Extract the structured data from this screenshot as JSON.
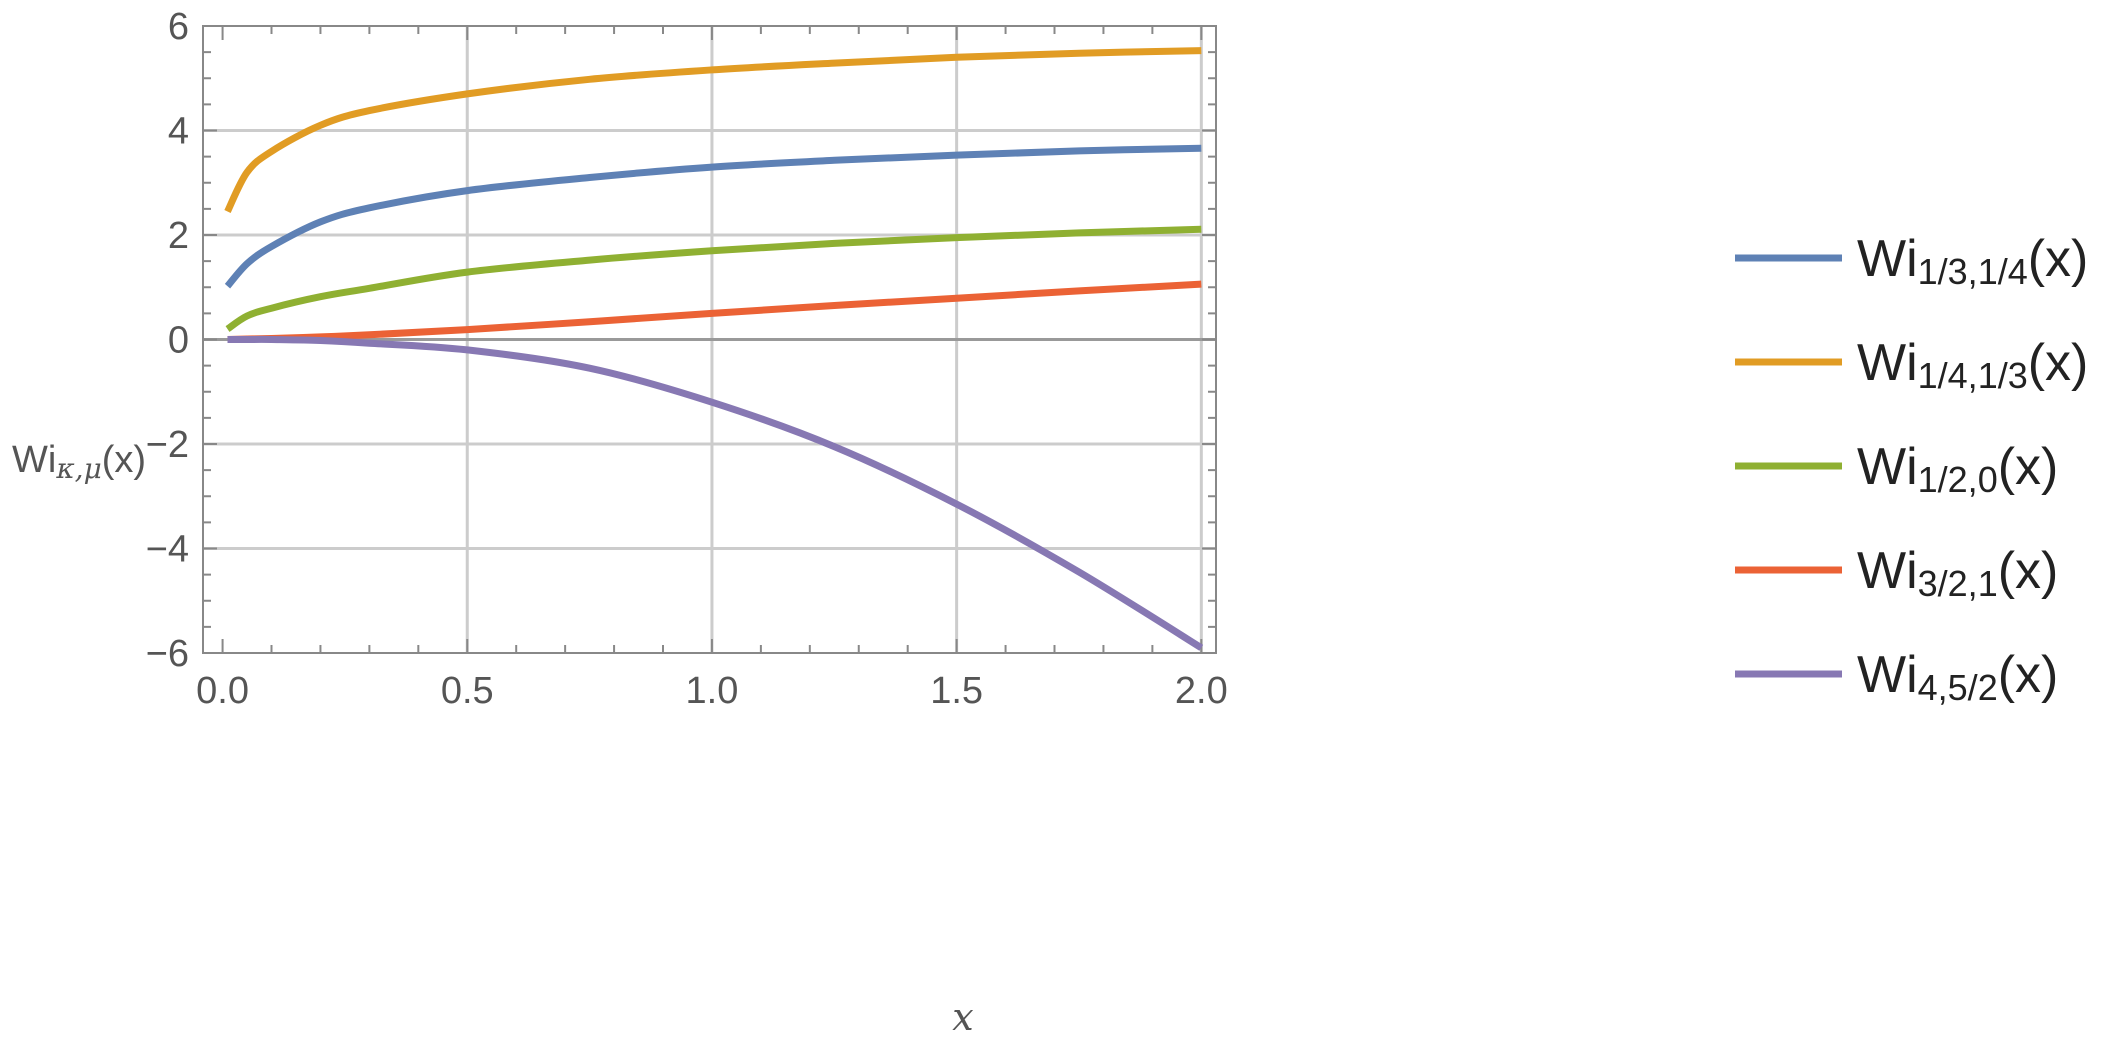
{
  "chart_data": {
    "type": "line",
    "xlabel": "x",
    "ylabel": {
      "main": "Wi",
      "sub": "κ,μ",
      "suffix": "(x)"
    },
    "xlim": [
      -0.04,
      2.03
    ],
    "ylim": [
      -6,
      6
    ],
    "x_ticks": [
      0.0,
      0.5,
      1.0,
      1.5,
      2.0
    ],
    "x_tick_labels": [
      "0.0",
      "0.5",
      "1.0",
      "1.5",
      "2.0"
    ],
    "y_ticks": [
      -6,
      -4,
      -2,
      0,
      2,
      4,
      6
    ],
    "y_tick_labels": [
      "−6",
      "−4",
      "−2",
      "0",
      "2",
      "4",
      "6"
    ],
    "grid": true,
    "legend_position": "right",
    "x": [
      0.01,
      0.05,
      0.1,
      0.2,
      0.3,
      0.5,
      0.75,
      1.0,
      1.25,
      1.5,
      1.75,
      2.0
    ],
    "series": [
      {
        "name_main": "Wi",
        "name_sub": "1/3,1/4",
        "name_suffix": "(x)",
        "color": "#5e81b5",
        "values": [
          1.02,
          1.45,
          1.78,
          2.25,
          2.52,
          2.85,
          3.1,
          3.3,
          3.43,
          3.53,
          3.61,
          3.66
        ]
      },
      {
        "name_main": "Wi",
        "name_sub": "1/4,1/3",
        "name_suffix": "(x)",
        "color": "#e19c24",
        "values": [
          2.45,
          3.2,
          3.6,
          4.1,
          4.38,
          4.7,
          4.98,
          5.16,
          5.29,
          5.4,
          5.48,
          5.53
        ]
      },
      {
        "name_main": "Wi",
        "name_sub": "1/2,0",
        "name_suffix": "(x)",
        "color": "#8fb032",
        "values": [
          0.2,
          0.45,
          0.6,
          0.82,
          0.98,
          1.29,
          1.52,
          1.7,
          1.84,
          1.95,
          2.04,
          2.11
        ]
      },
      {
        "name_main": "Wi",
        "name_sub": "3/2,1",
        "name_suffix": "(x)",
        "color": "#eb6235",
        "values": [
          0.0,
          0.01,
          0.02,
          0.05,
          0.09,
          0.19,
          0.34,
          0.5,
          0.65,
          0.79,
          0.93,
          1.06
        ]
      },
      {
        "name_main": "Wi",
        "name_sub": "4,5/2",
        "name_suffix": "(x)",
        "color": "#8778b3",
        "values": [
          0.0,
          0.0,
          0.0,
          -0.02,
          -0.07,
          -0.2,
          -0.55,
          -1.2,
          -2.05,
          -3.15,
          -4.45,
          -5.9
        ]
      }
    ]
  }
}
